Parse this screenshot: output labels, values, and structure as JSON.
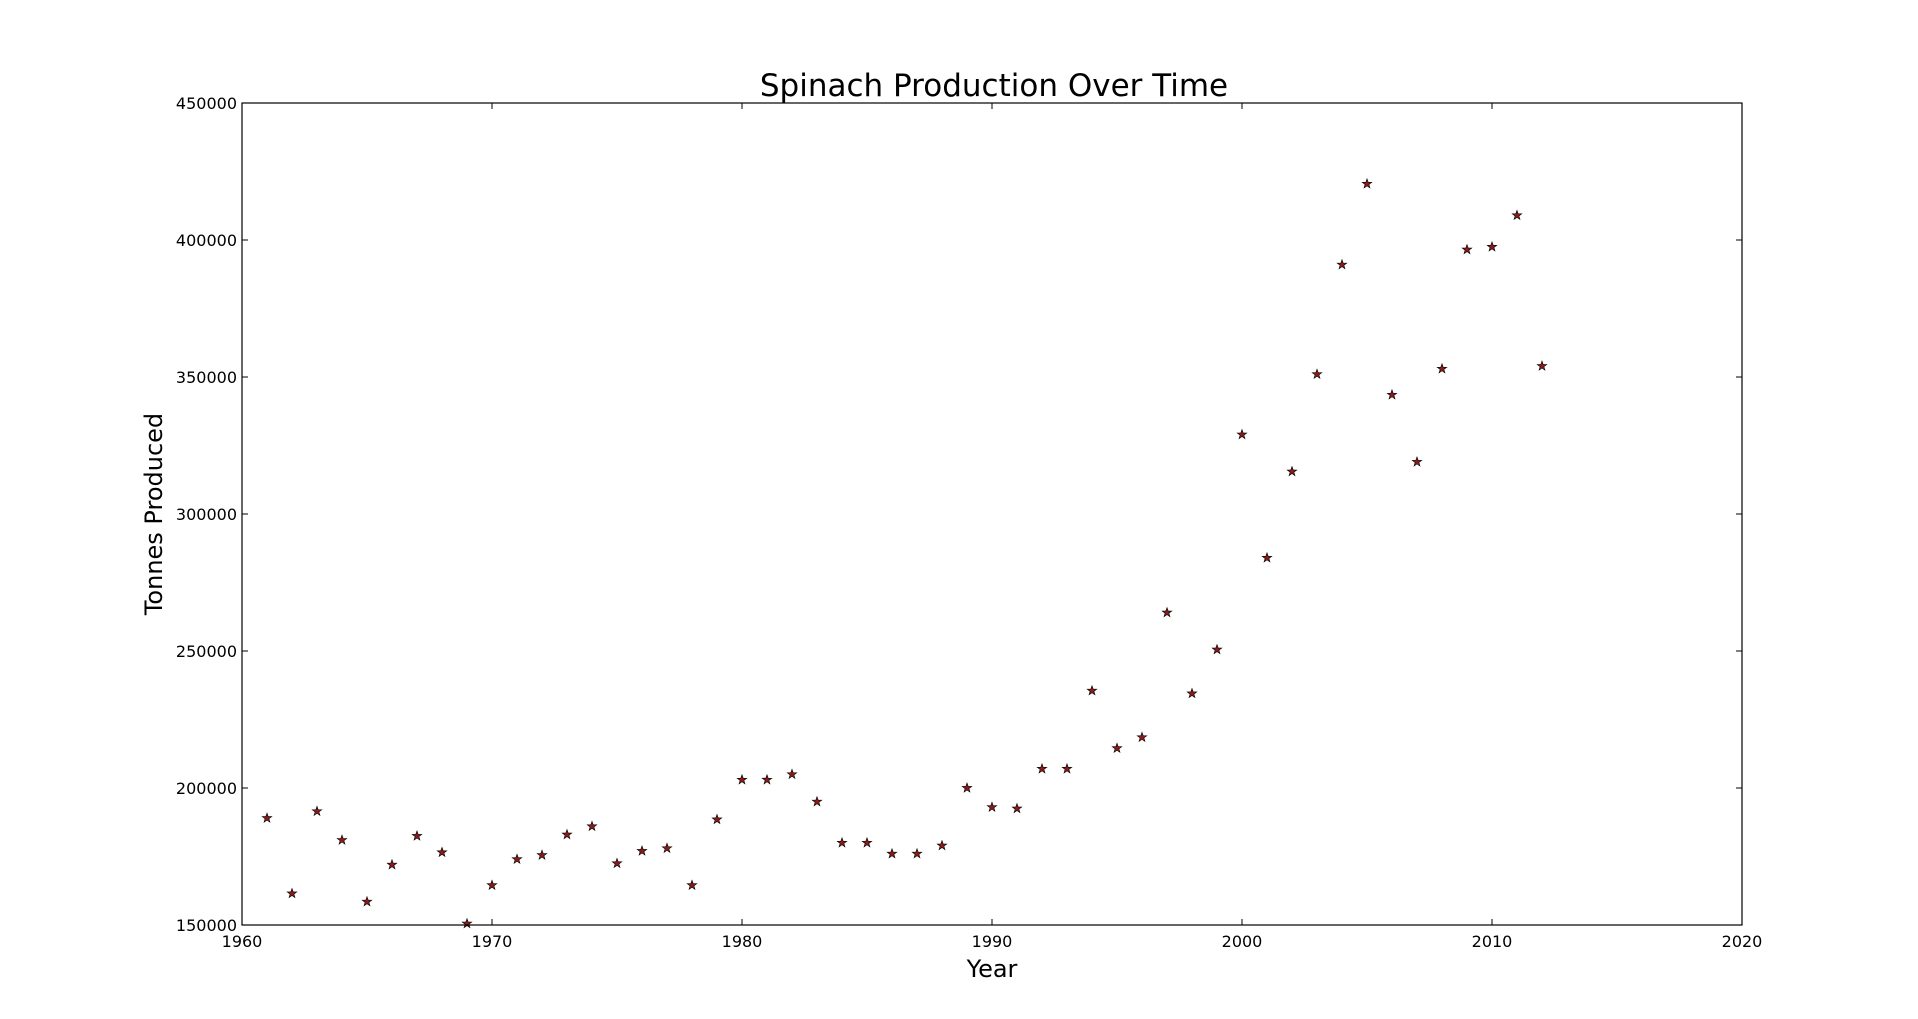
{
  "chart_data": {
    "type": "scatter",
    "title": "Spinach Production Over Time",
    "xlabel": "Year",
    "ylabel": "Tonnes Produced",
    "xlim": [
      1960,
      2020
    ],
    "ylim": [
      150000,
      450000
    ],
    "xticks": [
      1960,
      1970,
      1980,
      1990,
      2000,
      2010,
      2020
    ],
    "yticks": [
      150000,
      200000,
      250000,
      300000,
      350000,
      400000,
      450000
    ],
    "marker": "star",
    "marker_color": "#8b1a1a",
    "grid": false,
    "series": [
      {
        "x": [
          1961,
          1962,
          1963,
          1964,
          1965,
          1966,
          1967,
          1968,
          1969,
          1970,
          1971,
          1972,
          1973,
          1974,
          1975,
          1976,
          1977,
          1978,
          1979,
          1980,
          1981,
          1982,
          1983,
          1984,
          1985,
          1986,
          1987,
          1988,
          1989,
          1990,
          1991,
          1992,
          1993,
          1994,
          1995,
          1996,
          1997,
          1998,
          1999,
          2000,
          2001,
          2002,
          2003,
          2004,
          2005,
          2006,
          2007,
          2008,
          2009,
          2010,
          2011,
          2012
        ],
        "y": [
          189000,
          161500,
          191500,
          181000,
          158500,
          172000,
          182500,
          176500,
          150500,
          164500,
          174000,
          175500,
          183000,
          186000,
          172500,
          177000,
          178000,
          164500,
          188500,
          203000,
          203000,
          205000,
          195000,
          180000,
          180000,
          176000,
          176000,
          179000,
          200000,
          193000,
          192500,
          207000,
          207000,
          235500,
          214500,
          218500,
          264000,
          234500,
          250500,
          329000,
          284000,
          315500,
          351000,
          391000,
          420500,
          343500,
          319000,
          353000,
          396500,
          397500,
          409000,
          354000
        ]
      }
    ]
  }
}
